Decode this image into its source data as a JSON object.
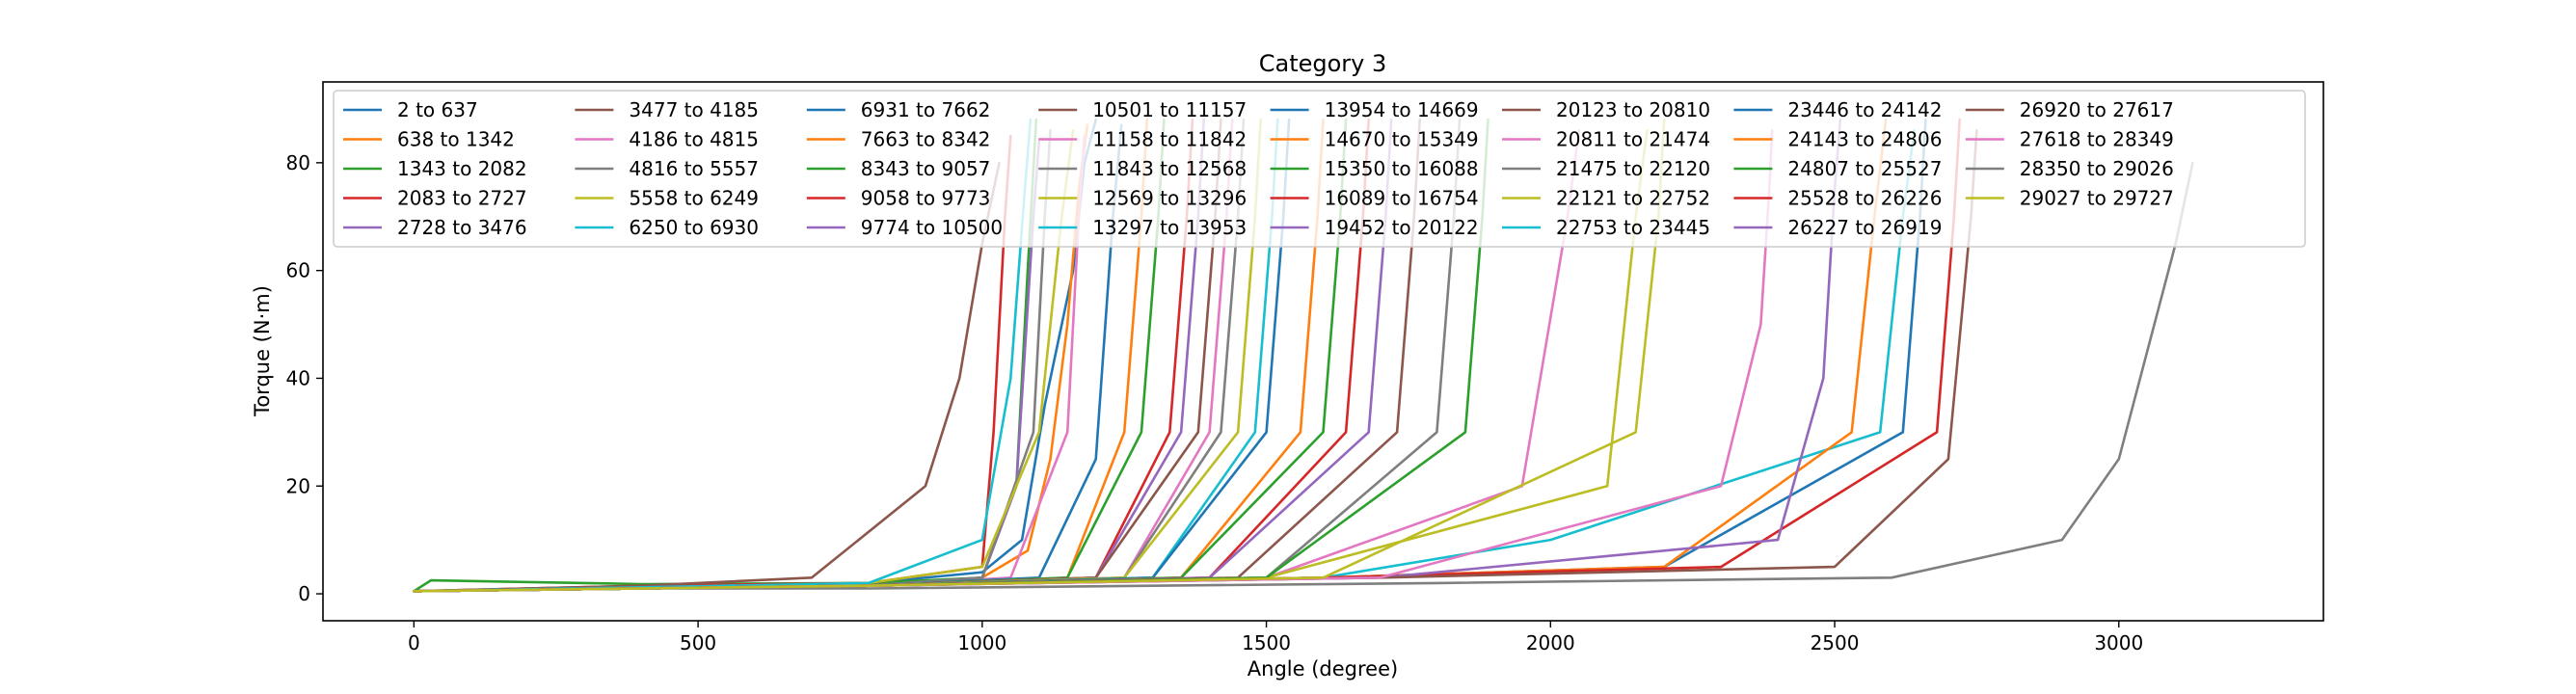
{
  "chart_data": {
    "type": "line",
    "title": "Category 3",
    "xlabel": "Angle (degree)",
    "ylabel": "Torque (N·m)",
    "xlim": [
      -160,
      3360
    ],
    "ylim": [
      -5,
      95
    ],
    "xticks": [
      0,
      500,
      1000,
      1500,
      2000,
      2500,
      3000
    ],
    "yticks": [
      0,
      20,
      40,
      60,
      80
    ],
    "grid": false,
    "legend_position": "top",
    "legend_columns": 8,
    "colors": [
      "#1f77b4",
      "#ff7f0e",
      "#2ca02c",
      "#d62728",
      "#9467bd",
      "#8c564b",
      "#e377c2",
      "#7f7f7f",
      "#bcbd22",
      "#17becf"
    ],
    "series": [
      {
        "name": "2 to 637",
        "color": "#1f77b4",
        "x": [
          0,
          400,
          800,
          1000,
          1070,
          1110,
          1160,
          1180,
          1200
        ],
        "y": [
          0.5,
          1.2,
          2.0,
          4.0,
          10.0,
          35.0,
          60.0,
          80.0,
          88.0
        ]
      },
      {
        "name": "638 to 1342",
        "color": "#ff7f0e",
        "x": [
          0,
          400,
          800,
          1000,
          1080,
          1120,
          1150,
          1170,
          1185
        ],
        "y": [
          0.5,
          1.0,
          1.8,
          3.0,
          8.0,
          25.0,
          50.0,
          75.0,
          87.0
        ]
      },
      {
        "name": "1343 to 2082",
        "color": "#2ca02c",
        "x": [
          0,
          30,
          400,
          800,
          1000,
          1060,
          1080,
          1095
        ],
        "y": [
          0.5,
          2.5,
          1.8,
          2.0,
          3.0,
          20.0,
          60.0,
          88.0
        ]
      },
      {
        "name": "2083 to 2727",
        "color": "#d62728",
        "x": [
          0,
          400,
          800,
          1000,
          1020,
          1040,
          1050
        ],
        "y": [
          0.5,
          1.5,
          2.0,
          5.0,
          30.0,
          70.0,
          85.0
        ]
      },
      {
        "name": "2728 to 3476",
        "color": "#9467bd",
        "x": [
          0,
          400,
          800,
          1000,
          1060,
          1090,
          1100
        ],
        "y": [
          0.5,
          1.0,
          1.5,
          3.0,
          20.0,
          70.0,
          84.0
        ]
      },
      {
        "name": "3477 to 4185",
        "color": "#8c564b",
        "x": [
          0,
          400,
          700,
          900,
          960,
          1000,
          1030
        ],
        "y": [
          0.5,
          1.5,
          3.0,
          20.0,
          40.0,
          65.0,
          80.0
        ]
      },
      {
        "name": "4186 to 4815",
        "color": "#e377c2",
        "x": [
          0,
          400,
          800,
          1050,
          1150,
          1170,
          1180
        ],
        "y": [
          0.5,
          1.0,
          1.5,
          3.0,
          30.0,
          70.0,
          85.0
        ]
      },
      {
        "name": "4816 to 5557",
        "color": "#7f7f7f",
        "x": [
          0,
          400,
          800,
          1000,
          1090,
          1110,
          1120
        ],
        "y": [
          0.5,
          1.0,
          1.5,
          3.0,
          30.0,
          70.0,
          86.0
        ]
      },
      {
        "name": "5558 to 6249",
        "color": "#bcbd22",
        "x": [
          0,
          400,
          800,
          1000,
          1100,
          1140,
          1160
        ],
        "y": [
          0.5,
          1.0,
          2.0,
          5.0,
          30.0,
          70.0,
          86.0
        ]
      },
      {
        "name": "6250 to 6930",
        "color": "#17becf",
        "x": [
          0,
          400,
          800,
          1000,
          1050,
          1075,
          1085
        ],
        "y": [
          0.5,
          1.2,
          2.0,
          10.0,
          40.0,
          75.0,
          88.0
        ]
      },
      {
        "name": "6931 to 7662",
        "color": "#1f77b4",
        "x": [
          0,
          400,
          800,
          1100,
          1200,
          1230,
          1245
        ],
        "y": [
          0.5,
          1.0,
          1.5,
          3.0,
          25.0,
          70.0,
          87.0
        ]
      },
      {
        "name": "7663 to 8342",
        "color": "#ff7f0e",
        "x": [
          0,
          400,
          800,
          1150,
          1250,
          1280,
          1290
        ],
        "y": [
          0.5,
          1.0,
          1.5,
          3.0,
          30.0,
          70.0,
          88.0
        ]
      },
      {
        "name": "8343 to 9057",
        "color": "#2ca02c",
        "x": [
          0,
          400,
          800,
          1150,
          1280,
          1310,
          1320
        ],
        "y": [
          0.5,
          1.0,
          1.5,
          3.0,
          30.0,
          70.0,
          88.0
        ]
      },
      {
        "name": "9058 to 9773",
        "color": "#d62728",
        "x": [
          0,
          400,
          800,
          1200,
          1330,
          1360,
          1370
        ],
        "y": [
          0.5,
          1.0,
          1.5,
          3.0,
          30.0,
          70.0,
          88.0
        ]
      },
      {
        "name": "9774 to 10500",
        "color": "#9467bd",
        "x": [
          0,
          400,
          800,
          1200,
          1350,
          1380,
          1390
        ],
        "y": [
          0.5,
          1.0,
          1.5,
          3.0,
          30.0,
          70.0,
          88.0
        ]
      },
      {
        "name": "10501 to 11157",
        "color": "#8c564b",
        "x": [
          0,
          400,
          800,
          1200,
          1380,
          1410,
          1420
        ],
        "y": [
          0.5,
          1.0,
          1.5,
          3.0,
          30.0,
          70.0,
          88.0
        ]
      },
      {
        "name": "11158 to 11842",
        "color": "#e377c2",
        "x": [
          0,
          400,
          800,
          1250,
          1400,
          1430,
          1440
        ],
        "y": [
          0.5,
          1.0,
          1.5,
          3.0,
          30.0,
          70.0,
          88.0
        ]
      },
      {
        "name": "11843 to 12568",
        "color": "#7f7f7f",
        "x": [
          0,
          400,
          800,
          1250,
          1420,
          1450,
          1460
        ],
        "y": [
          0.5,
          1.0,
          1.5,
          3.0,
          30.0,
          70.0,
          88.0
        ]
      },
      {
        "name": "12569 to 13296",
        "color": "#bcbd22",
        "x": [
          0,
          400,
          800,
          1250,
          1450,
          1480,
          1490
        ],
        "y": [
          0.5,
          1.0,
          1.5,
          3.0,
          30.0,
          70.0,
          88.0
        ]
      },
      {
        "name": "13297 to 13953",
        "color": "#17becf",
        "x": [
          0,
          400,
          800,
          1300,
          1480,
          1510,
          1520
        ],
        "y": [
          0.5,
          1.0,
          1.5,
          3.0,
          30.0,
          70.0,
          88.0
        ]
      },
      {
        "name": "13954 to 14669",
        "color": "#1f77b4",
        "x": [
          0,
          400,
          800,
          1300,
          1500,
          1530,
          1540
        ],
        "y": [
          0.5,
          1.0,
          1.5,
          3.0,
          30.0,
          70.0,
          88.0
        ]
      },
      {
        "name": "14670 to 15349",
        "color": "#ff7f0e",
        "x": [
          0,
          400,
          800,
          1350,
          1560,
          1590,
          1600
        ],
        "y": [
          0.5,
          1.0,
          1.5,
          3.0,
          30.0,
          70.0,
          88.0
        ]
      },
      {
        "name": "15350 to 16088",
        "color": "#2ca02c",
        "x": [
          0,
          400,
          800,
          1350,
          1600,
          1630,
          1640
        ],
        "y": [
          0.5,
          1.0,
          1.5,
          3.0,
          30.0,
          70.0,
          88.0
        ]
      },
      {
        "name": "16089 to 16754",
        "color": "#d62728",
        "x": [
          0,
          400,
          800,
          1400,
          1640,
          1670,
          1680
        ],
        "y": [
          0.5,
          1.0,
          1.5,
          3.0,
          30.0,
          70.0,
          88.0
        ]
      },
      {
        "name": "19452 to 20122",
        "color": "#9467bd",
        "x": [
          0,
          400,
          800,
          1400,
          1680,
          1710,
          1720
        ],
        "y": [
          0.5,
          1.0,
          1.5,
          3.0,
          30.0,
          70.0,
          88.0
        ]
      },
      {
        "name": "20123 to 20810",
        "color": "#8c564b",
        "x": [
          0,
          400,
          800,
          1450,
          1730,
          1760,
          1770
        ],
        "y": [
          0.5,
          1.0,
          1.5,
          3.0,
          30.0,
          70.0,
          88.0
        ]
      },
      {
        "name": "20811 to 21474",
        "color": "#e377c2",
        "x": [
          0,
          400,
          800,
          1500,
          1950,
          2030,
          2050
        ],
        "y": [
          0.5,
          1.0,
          1.5,
          3.0,
          20.0,
          70.0,
          86.0
        ]
      },
      {
        "name": "21475 to 22120",
        "color": "#7f7f7f",
        "x": [
          0,
          400,
          800,
          1500,
          1800,
          1830,
          1840
        ],
        "y": [
          0.5,
          1.0,
          1.5,
          3.0,
          30.0,
          70.0,
          88.0
        ]
      },
      {
        "name": "22121 to 22752",
        "color": "#bcbd22",
        "x": [
          0,
          400,
          800,
          1500,
          2100,
          2150,
          2170
        ],
        "y": [
          0.5,
          1.0,
          1.5,
          3.0,
          20.0,
          70.0,
          86.0
        ]
      },
      {
        "name": "22753 to 23445",
        "color": "#17becf",
        "x": [
          0,
          400,
          800,
          1600,
          2000,
          2580,
          2620,
          2640
        ],
        "y": [
          0.5,
          1.0,
          1.5,
          3.0,
          10.0,
          30.0,
          70.0,
          86.0
        ]
      },
      {
        "name": "23446 to 24142",
        "color": "#1f77b4",
        "x": [
          0,
          400,
          800,
          1600,
          2200,
          2620,
          2650,
          2660
        ],
        "y": [
          0.5,
          1.0,
          1.5,
          3.0,
          5.0,
          30.0,
          70.0,
          88.0
        ]
      },
      {
        "name": "24143 to 24806",
        "color": "#ff7f0e",
        "x": [
          0,
          400,
          800,
          1600,
          2200,
          2530,
          2570,
          2590
        ],
        "y": [
          0.5,
          1.0,
          1.5,
          3.0,
          5.0,
          30.0,
          70.0,
          88.0
        ]
      },
      {
        "name": "24807 to 25527",
        "color": "#2ca02c",
        "x": [
          0,
          400,
          800,
          1500,
          1850,
          1880,
          1890
        ],
        "y": [
          0.5,
          1.0,
          1.5,
          3.0,
          30.0,
          70.0,
          88.0
        ]
      },
      {
        "name": "25528 to 26226",
        "color": "#d62728",
        "x": [
          0,
          400,
          800,
          1600,
          2300,
          2680,
          2710,
          2720
        ],
        "y": [
          0.5,
          1.0,
          1.5,
          3.0,
          5.0,
          30.0,
          70.0,
          88.0
        ]
      },
      {
        "name": "26227 to 26919",
        "color": "#9467bd",
        "x": [
          0,
          400,
          800,
          1700,
          2400,
          2480,
          2500,
          2510
        ],
        "y": [
          0.5,
          1.0,
          1.5,
          3.0,
          10.0,
          40.0,
          75.0,
          88.0
        ]
      },
      {
        "name": "26920 to 27617",
        "color": "#8c564b",
        "x": [
          0,
          400,
          800,
          1700,
          2500,
          2700,
          2740,
          2750
        ],
        "y": [
          0.5,
          1.0,
          1.5,
          3.0,
          5.0,
          25.0,
          70.0,
          86.0
        ]
      },
      {
        "name": "27618 to 28349",
        "color": "#e377c2",
        "x": [
          0,
          400,
          800,
          1700,
          2300,
          2370,
          2385,
          2390
        ],
        "y": [
          0.5,
          1.0,
          1.5,
          3.0,
          20.0,
          50.0,
          75.0,
          86.0
        ]
      },
      {
        "name": "28350 to 29026",
        "color": "#7f7f7f",
        "x": [
          0,
          400,
          800,
          1800,
          2600,
          2900,
          3000,
          3100,
          3130
        ],
        "y": [
          0.5,
          1.0,
          1.0,
          2.0,
          3.0,
          10.0,
          25.0,
          65.0,
          80.0
        ]
      },
      {
        "name": "29027 to 29727",
        "color": "#bcbd22",
        "x": [
          0,
          400,
          800,
          1600,
          2150,
          2190,
          2200
        ],
        "y": [
          0.5,
          1.0,
          1.5,
          3.0,
          30.0,
          70.0,
          88.0
        ]
      }
    ]
  }
}
